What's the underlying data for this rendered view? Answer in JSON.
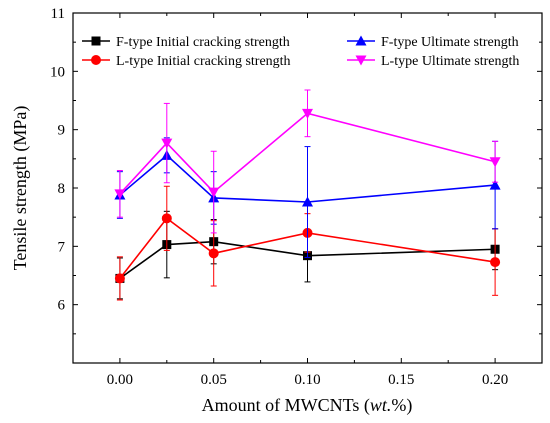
{
  "chart_data": {
    "type": "line",
    "xlabel_main": "Amount of MWCNTs (",
    "xlabel_italic": "wt.",
    "xlabel_tail": "%)",
    "ylabel": "Tensile strength (MPa)",
    "xlim": [
      -0.025,
      0.225
    ],
    "ylim": [
      5,
      11
    ],
    "xticks": [
      0.0,
      0.05,
      0.1,
      0.15,
      0.2
    ],
    "xtick_labels": [
      "0.00",
      "0.05",
      "0.10",
      "0.15",
      "0.20"
    ],
    "yticks": [
      6,
      7,
      8,
      9,
      10,
      11
    ],
    "ytick_labels": [
      "6",
      "7",
      "8",
      "9",
      "10",
      "11"
    ],
    "grid": false,
    "legend_position": "top",
    "series": [
      {
        "name": "F-type Initial cracking strength",
        "color": "#000000",
        "marker": "square",
        "x": [
          0.0,
          0.025,
          0.05,
          0.1,
          0.2
        ],
        "y": [
          6.45,
          7.03,
          7.08,
          6.84,
          6.95
        ],
        "err": [
          0.35,
          0.57,
          0.38,
          0.45,
          0.35
        ]
      },
      {
        "name": "L-type Initial cracking strength",
        "color": "#ff0000",
        "marker": "circle",
        "x": [
          0.0,
          0.025,
          0.05,
          0.1,
          0.2
        ],
        "y": [
          6.45,
          7.48,
          6.88,
          7.23,
          6.73
        ],
        "err": [
          0.37,
          0.55,
          0.56,
          0.33,
          0.57
        ]
      },
      {
        "name": "F-type Ultimate strength",
        "color": "#0000ff",
        "marker": "triangle-up",
        "x": [
          0.0,
          0.025,
          0.05,
          0.1,
          0.2
        ],
        "y": [
          7.88,
          8.56,
          7.83,
          7.76,
          8.05
        ],
        "err": [
          0.4,
          0.3,
          0.45,
          0.95,
          0.75
        ]
      },
      {
        "name": "L-type Ultimate strength",
        "color": "#ff00ff",
        "marker": "triangle-down",
        "x": [
          0.0,
          0.025,
          0.05,
          0.1,
          0.2
        ],
        "y": [
          7.9,
          8.77,
          7.93,
          9.28,
          8.45
        ],
        "err": [
          0.4,
          0.68,
          0.7,
          0.4,
          0.35
        ]
      }
    ]
  }
}
